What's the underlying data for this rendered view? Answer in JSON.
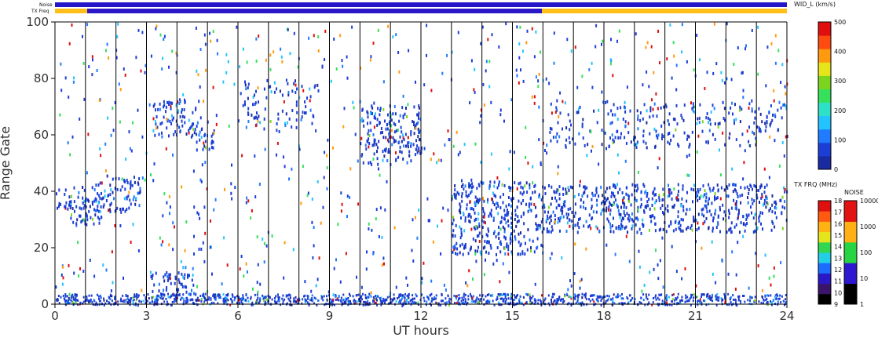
{
  "chart_data": {
    "type": "heatmap",
    "title": "",
    "xlabel": "UT hours",
    "ylabel": "Range Gate",
    "xlim": [
      0,
      24
    ],
    "ylim": [
      0,
      100
    ],
    "x_ticks": [
      "0",
      "3",
      "6",
      "9",
      "12",
      "15",
      "18",
      "21",
      "24"
    ],
    "y_ticks": [
      "0",
      "20",
      "40",
      "60",
      "80",
      "100"
    ],
    "top_bars": {
      "noise_label": "Noise",
      "txfreq_label": "TX Freq"
    },
    "main_colorbar": {
      "label": "WID_L (km/s)",
      "ticks": [
        "0",
        "100",
        "200",
        "300",
        "400",
        "500"
      ],
      "range": [
        0,
        500
      ],
      "colors": [
        "#1a2aa0",
        "#1b3fd6",
        "#1f7bff",
        "#22c3ff",
        "#2fe0c8",
        "#35e05a",
        "#7bd51f",
        "#e7e51a",
        "#ff9a0f",
        "#ff4a10",
        "#e00e0e"
      ]
    },
    "txfreq_colorbar": {
      "label": "TX FRQ (MHz)",
      "ticks": [
        "9",
        "10",
        "11",
        "12",
        "13",
        "14",
        "15",
        "16",
        "17",
        "18"
      ],
      "colors": [
        "#000000",
        "#3a1468",
        "#2a17c8",
        "#1b6cff",
        "#22cfe6",
        "#33d64f",
        "#e5e51b",
        "#ffb213",
        "#ff5a10",
        "#df1010"
      ]
    },
    "noise_colorbar": {
      "label": "NOISE",
      "ticks": [
        "1",
        "10",
        "100",
        "1000",
        "10000"
      ],
      "colors": [
        "#000000",
        "#2d18d0",
        "#27d443",
        "#ffb014",
        "#e21313"
      ]
    },
    "series": [
      {
        "name": "",
        "ut_start": 0.0,
        "ut_end": 1.0,
        "gate_start": 34,
        "gate_end": 42,
        "dense": true
      },
      {
        "name": "",
        "ut_start": 0.5,
        "ut_end": 1.5,
        "gate_start": 28,
        "gate_end": 38,
        "dense": true
      },
      {
        "name": "",
        "ut_start": 1.2,
        "ut_end": 2.8,
        "gate_start": 33,
        "gate_end": 46,
        "dense": true
      },
      {
        "name": "",
        "ut_start": 3.2,
        "ut_end": 4.8,
        "gate_start": 60,
        "gate_end": 73,
        "dense": true
      },
      {
        "name": "",
        "ut_start": 4.6,
        "ut_end": 5.2,
        "gate_start": 54,
        "gate_end": 62,
        "dense": true
      },
      {
        "name": "",
        "ut_start": 3.1,
        "ut_end": 4.6,
        "gate_start": 3,
        "gate_end": 12,
        "dense": true
      },
      {
        "name": "",
        "ut_start": 6.2,
        "ut_end": 8.6,
        "gate_start": 62,
        "gate_end": 80,
        "dense": false
      },
      {
        "name": "",
        "ut_start": 10.0,
        "ut_end": 12.0,
        "gate_start": 50,
        "gate_end": 71,
        "dense": true
      },
      {
        "name": "",
        "ut_start": 13.0,
        "ut_end": 16.0,
        "gate_start": 18,
        "gate_end": 44,
        "dense": true
      },
      {
        "name": "",
        "ut_start": 16.0,
        "ut_end": 24.0,
        "gate_start": 26,
        "gate_end": 43,
        "dense": true
      },
      {
        "name": "",
        "ut_start": 16.2,
        "ut_end": 24.0,
        "gate_start": 56,
        "gate_end": 72,
        "dense": false
      }
    ]
  }
}
